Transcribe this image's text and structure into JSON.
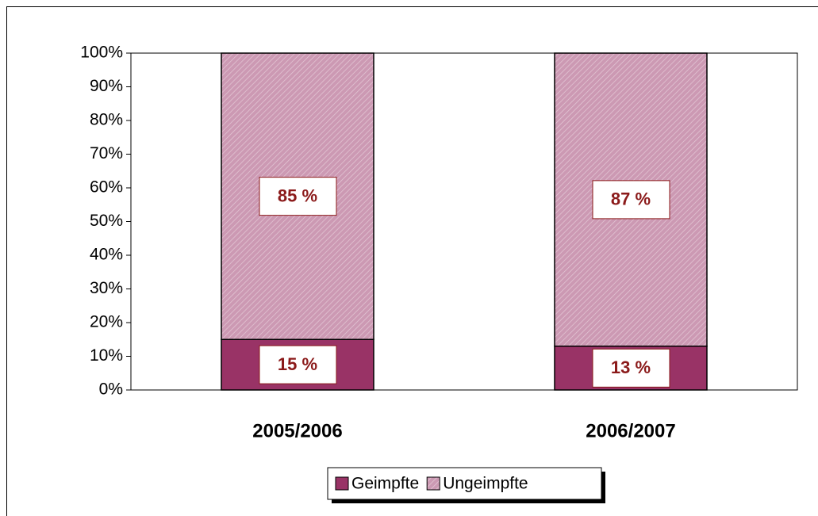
{
  "chart_data": {
    "type": "stacked_bar",
    "categories": [
      "2005/2006",
      "2006/2007"
    ],
    "series": [
      {
        "name": "Geimpfte",
        "color": "#993366",
        "values": [
          15,
          13
        ],
        "value_labels": [
          "15 %",
          "13 %"
        ]
      },
      {
        "name": "Ungeimpfte",
        "color": "#cc99b3",
        "hatch": true,
        "values": [
          85,
          87
        ],
        "value_labels": [
          "85 %",
          "87 %"
        ]
      }
    ],
    "ylim": [
      0,
      100
    ],
    "yticks": [
      {
        "value": 0,
        "label": "0%"
      },
      {
        "value": 10,
        "label": "10%"
      },
      {
        "value": 20,
        "label": "20%"
      },
      {
        "value": 30,
        "label": "30%"
      },
      {
        "value": 40,
        "label": "40%"
      },
      {
        "value": 50,
        "label": "50%"
      },
      {
        "value": 60,
        "label": "60%"
      },
      {
        "value": 70,
        "label": "70%"
      },
      {
        "value": 80,
        "label": "80%"
      },
      {
        "value": 90,
        "label": "90%"
      },
      {
        "value": 100,
        "label": "100%"
      }
    ],
    "grid": false,
    "legend": "bottom"
  }
}
